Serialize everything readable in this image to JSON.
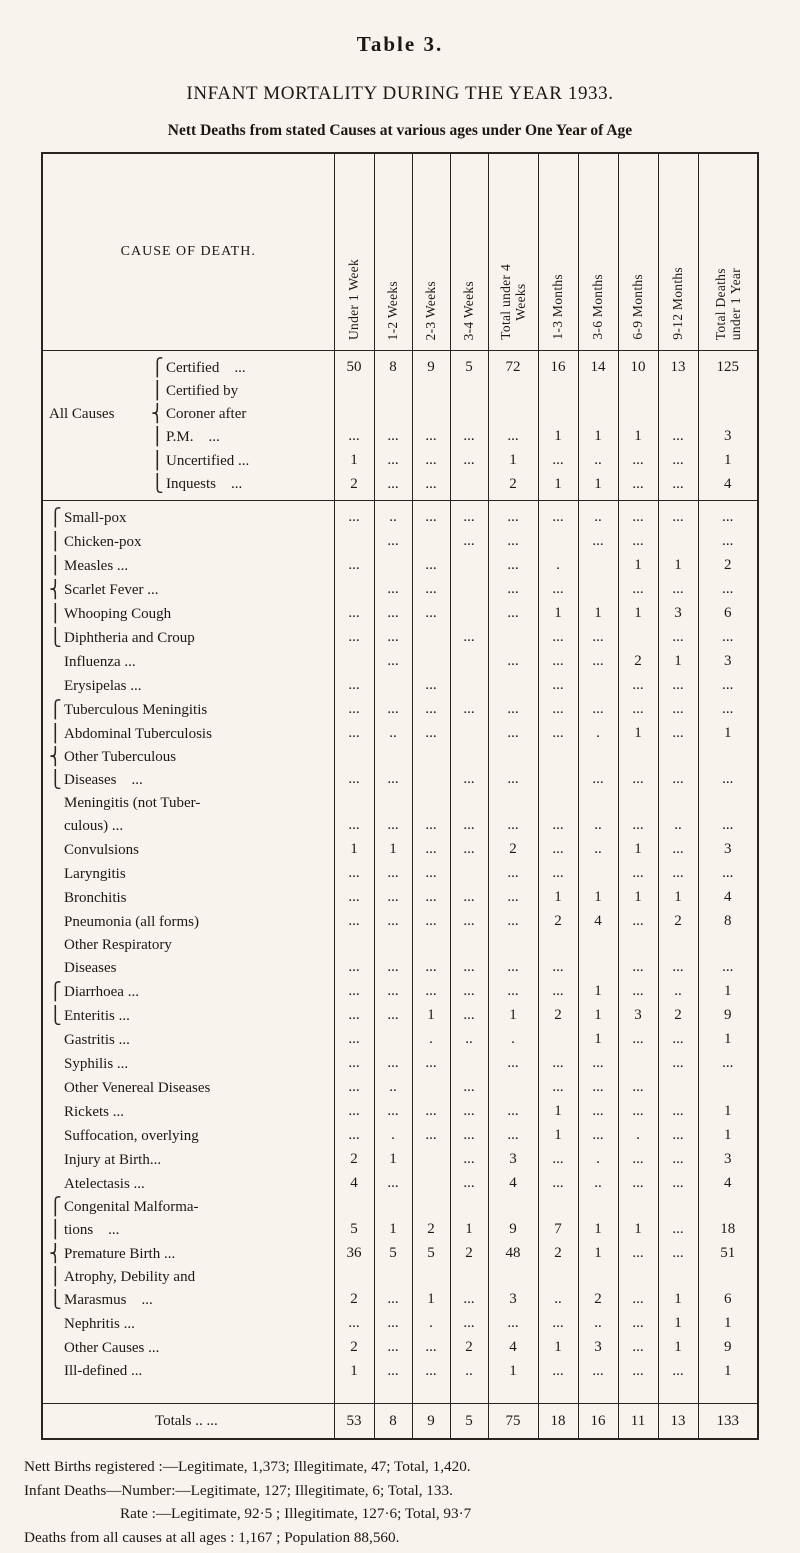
{
  "page": {
    "table_label": "Table 3.",
    "title": "INFANT MORTALITY DURING THE YEAR 1933.",
    "subtitle": "Nett Deaths from stated Causes at various ages under One Year of Age"
  },
  "table": {
    "cause_header": "CAUSE OF DEATH.",
    "col_headers": [
      [
        "Under 1 Week"
      ],
      [
        "1-2 Weeks"
      ],
      [
        "2-3 Weeks"
      ],
      [
        "3-4 Weeks"
      ],
      [
        "Total under 4",
        "Weeks"
      ],
      [
        "1-3 Months"
      ],
      [
        "3-6 Months"
      ],
      [
        "6-9 Months"
      ],
      [
        "9-12 Months"
      ],
      [
        "Total Deaths",
        "under 1 Year"
      ]
    ],
    "rows": [
      {
        "side": "",
        "brace": [
          "⎧"
        ],
        "lines": [
          "Certified ..."
        ],
        "cells": [
          "50",
          "8",
          "9",
          "5",
          "72",
          "16",
          "14",
          "10",
          "13",
          "125"
        ]
      },
      {
        "side": "All Causes",
        "brace": [
          "⎪",
          "⎨",
          "⎪"
        ],
        "lines": [
          "Certified by",
          "Coroner after",
          "P.M. ..."
        ],
        "cells": [
          "...",
          "...",
          "...",
          "...",
          "...",
          "1",
          "1",
          "1",
          "...",
          "3"
        ]
      },
      {
        "side": "",
        "brace": [
          "⎪"
        ],
        "lines": [
          "Uncertified ..."
        ],
        "cells": [
          "1",
          "...",
          "...",
          "...",
          "1",
          "...",
          "..",
          "...",
          "...",
          "1"
        ]
      },
      {
        "side": "",
        "brace": [
          "⎩"
        ],
        "lines": [
          "Inquests ..."
        ],
        "cells": [
          "2",
          "...",
          "...",
          "",
          "2",
          "1",
          "1",
          "...",
          "...",
          "4"
        ],
        "rule_below": true
      },
      {
        "brace": [
          "⎧"
        ],
        "lines": [
          "Small-pox"
        ],
        "cells": [
          "...",
          "..",
          "...",
          "...",
          "...",
          "...",
          "..",
          "...",
          "...",
          "..."
        ]
      },
      {
        "brace": [
          "⎪"
        ],
        "lines": [
          "Chicken-pox"
        ],
        "cells": [
          "",
          "...",
          "",
          "...",
          "...",
          "",
          "...",
          "...",
          "",
          "..."
        ]
      },
      {
        "brace": [
          "⎪"
        ],
        "lines": [
          "Measles ..."
        ],
        "cells": [
          "...",
          "",
          "...",
          "",
          "...",
          ".",
          "",
          "1",
          "1",
          "2"
        ]
      },
      {
        "brace": [
          "⎨"
        ],
        "lines": [
          "Scarlet Fever ..."
        ],
        "cells": [
          "",
          "...",
          "...",
          "",
          "...",
          "...",
          "",
          "...",
          "...",
          "..."
        ]
      },
      {
        "brace": [
          "⎪"
        ],
        "lines": [
          "Whooping Cough"
        ],
        "cells": [
          "...",
          "...",
          "...",
          "",
          "...",
          "1",
          "1",
          "1",
          "3",
          "6"
        ]
      },
      {
        "brace": [
          "⎩"
        ],
        "lines": [
          "Diphtheria and Croup"
        ],
        "cells": [
          "...",
          "...",
          "",
          "...",
          "",
          "...",
          "...",
          "",
          "...",
          "..."
        ]
      },
      {
        "lines": [
          "Influenza ..."
        ],
        "cells": [
          "",
          "...",
          "",
          "",
          "...",
          "...",
          "...",
          "2",
          "1",
          "3"
        ]
      },
      {
        "lines": [
          "Erysipelas ..."
        ],
        "cells": [
          "...",
          "",
          "...",
          "",
          "",
          "...",
          "",
          "...",
          "...",
          "..."
        ]
      },
      {
        "brace": [
          "⎧"
        ],
        "lines": [
          "Tuberculous Meningitis"
        ],
        "cells": [
          "...",
          "...",
          "...",
          "...",
          "...",
          "...",
          "...",
          "...",
          "...",
          "..."
        ]
      },
      {
        "brace": [
          "⎪"
        ],
        "lines": [
          "Abdominal Tuberculosis"
        ],
        "cells": [
          "...",
          "..",
          "...",
          "",
          "...",
          "...",
          ".",
          "1",
          "...",
          "1"
        ]
      },
      {
        "brace": [
          "⎨",
          "⎩"
        ],
        "lines": [
          "Other Tuberculous",
          "Diseases ..."
        ],
        "cells": [
          "...",
          "...",
          "",
          "...",
          "...",
          "",
          "...",
          "...",
          "...",
          "..."
        ]
      },
      {
        "lines": [
          "Meningitis (not Tuber-",
          "culous) ..."
        ],
        "cells": [
          "...",
          "...",
          "...",
          "...",
          "...",
          "...",
          "..",
          "...",
          "..",
          "..."
        ]
      },
      {
        "lines": [
          "Convulsions"
        ],
        "cells": [
          "1",
          "1",
          "...",
          "...",
          "2",
          "...",
          "..",
          "1",
          "...",
          "3"
        ]
      },
      {
        "lines": [
          "Laryngitis"
        ],
        "cells": [
          "...",
          "...",
          "...",
          "",
          "...",
          "...",
          "",
          "...",
          "...",
          "..."
        ]
      },
      {
        "lines": [
          "Bronchitis"
        ],
        "cells": [
          "...",
          "...",
          "...",
          "...",
          "...",
          "1",
          "1",
          "1",
          "1",
          "4"
        ]
      },
      {
        "lines": [
          "Pneumonia (all forms)"
        ],
        "cells": [
          "...",
          "...",
          "...",
          "...",
          "...",
          "2",
          "4",
          "...",
          "2",
          "8"
        ]
      },
      {
        "lines": [
          "Other Respiratory",
          "Diseases"
        ],
        "cells": [
          "...",
          "...",
          "...",
          "...",
          "...",
          "...",
          "",
          "...",
          "...",
          "..."
        ]
      },
      {
        "brace": [
          "⎧"
        ],
        "lines": [
          "Diarrhoea ..."
        ],
        "cells": [
          "...",
          "...",
          "...",
          "...",
          "...",
          "...",
          "1",
          "...",
          "..",
          "1"
        ]
      },
      {
        "brace": [
          "⎩"
        ],
        "lines": [
          "Enteritis ..."
        ],
        "cells": [
          "...",
          "...",
          "1",
          "...",
          "1",
          "2",
          "1",
          "3",
          "2",
          "9"
        ]
      },
      {
        "lines": [
          "Gastritis ..."
        ],
        "cells": [
          "...",
          "",
          ".",
          "..",
          ".",
          "",
          "1",
          "...",
          "...",
          "1"
        ]
      },
      {
        "lines": [
          "Syphilis ..."
        ],
        "cells": [
          "...",
          "...",
          "...",
          "",
          "...",
          "...",
          "...",
          "",
          "...",
          "..."
        ]
      },
      {
        "lines": [
          "Other Venereal Diseases"
        ],
        "cells": [
          "...",
          "..",
          "",
          "...",
          "",
          "...",
          "...",
          "...",
          "",
          ""
        ]
      },
      {
        "lines": [
          "Rickets ..."
        ],
        "cells": [
          "...",
          "...",
          "...",
          "...",
          "...",
          "1",
          "...",
          "...",
          "...",
          "1"
        ]
      },
      {
        "lines": [
          "Suffocation, overlying"
        ],
        "cells": [
          "...",
          ".",
          "...",
          "...",
          "...",
          "1",
          "...",
          ".",
          "...",
          "1"
        ]
      },
      {
        "lines": [
          "Injury at Birth..."
        ],
        "cells": [
          "2",
          "1",
          "",
          "...",
          "3",
          "...",
          ".",
          "...",
          "...",
          "3"
        ]
      },
      {
        "lines": [
          "Atelectasis ..."
        ],
        "cells": [
          "4",
          "...",
          "",
          "...",
          "4",
          "...",
          "..",
          "...",
          "...",
          "4"
        ]
      },
      {
        "brace": [
          "⎧",
          "⎪"
        ],
        "lines": [
          "Congenital Malforma-",
          "tions ..."
        ],
        "cells": [
          "5",
          "1",
          "2",
          "1",
          "9",
          "7",
          "1",
          "1",
          "...",
          "18"
        ]
      },
      {
        "brace": [
          "⎨"
        ],
        "lines": [
          "Premature Birth ..."
        ],
        "cells": [
          "36",
          "5",
          "5",
          "2",
          "48",
          "2",
          "1",
          "...",
          "...",
          "51"
        ]
      },
      {
        "brace": [
          "⎪",
          "⎩"
        ],
        "lines": [
          "Atrophy, Debility and",
          "Marasmus ..."
        ],
        "cells": [
          "2",
          "...",
          "1",
          "...",
          "3",
          "..",
          "2",
          "...",
          "1",
          "6"
        ]
      },
      {
        "lines": [
          "Nephritis ..."
        ],
        "cells": [
          "...",
          "...",
          ".",
          "...",
          "...",
          "...",
          "..",
          "...",
          "1",
          "1"
        ]
      },
      {
        "lines": [
          "Other Causes ..."
        ],
        "cells": [
          "2",
          "...",
          "...",
          "2",
          "4",
          "1",
          "3",
          "...",
          "1",
          "9"
        ]
      },
      {
        "lines": [
          "Ill-defined ..."
        ],
        "cells": [
          "1",
          "...",
          "...",
          "..",
          "1",
          "...",
          "...",
          "...",
          "...",
          "1"
        ]
      }
    ],
    "totals": {
      "label": "Totals .. ...",
      "cells": [
        "53",
        "8",
        "9",
        "5",
        "75",
        "18",
        "16",
        "11",
        "13",
        "133"
      ]
    }
  },
  "notes": [
    "Nett Births registered :—Legitimate, 1,373; Illegitimate, 47; Total, 1,420.",
    "Infant Deaths—Number:—Legitimate, 127; Illegitimate, 6; Total, 133.",
    "Rate :—Legitimate, 92·5 ; Illegitimate, 127·6; Total, 93·7",
    "Deaths from all causes at all ages : 1,167 ; Population 88,560."
  ]
}
